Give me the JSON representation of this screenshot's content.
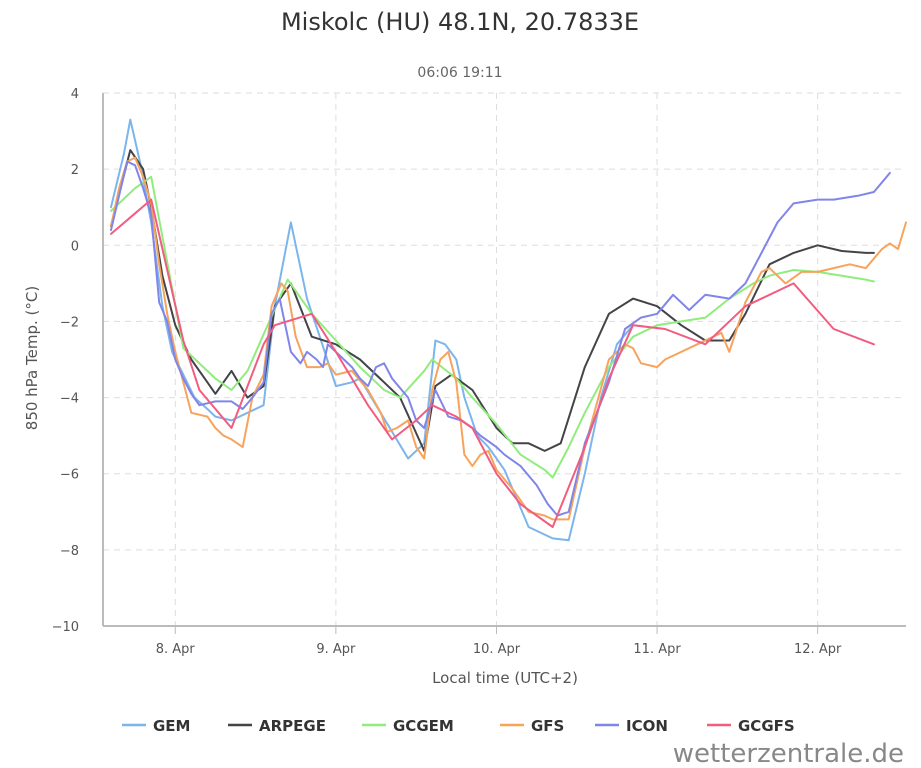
{
  "chart_data": {
    "type": "line",
    "title": "Miskolc (HU) 48.1N, 20.7833E",
    "subtitle": "06:06 19:11",
    "xlabel": "Local time (UTC+2)",
    "ylabel": "850 hPa Temp. (°C)",
    "x_unit": "days (Apr)",
    "xlim": [
      7.55,
      12.55
    ],
    "ylim": [
      -10,
      4
    ],
    "y_ticks": [
      4,
      2,
      0,
      -2,
      -4,
      -6,
      -8,
      -10
    ],
    "x_ticks": [
      {
        "value": 8,
        "label": "8. Apr"
      },
      {
        "value": 9,
        "label": "9. Apr"
      },
      {
        "value": 10,
        "label": "10. Apr"
      },
      {
        "value": 11,
        "label": "11. Apr"
      },
      {
        "value": 12,
        "label": "12. Apr"
      }
    ],
    "grid": true,
    "legend_position": "bottom",
    "credit": "wetterzentrale.de",
    "series": [
      {
        "name": "GEM",
        "color": "#7cb5ec",
        "points": [
          [
            7.6,
            1.0
          ],
          [
            7.68,
            2.4
          ],
          [
            7.72,
            3.3
          ],
          [
            7.78,
            2.2
          ],
          [
            7.85,
            0.6
          ],
          [
            7.92,
            -1.6
          ],
          [
            7.98,
            -2.8
          ],
          [
            8.05,
            -3.4
          ],
          [
            8.12,
            -4.0
          ],
          [
            8.2,
            -4.3
          ],
          [
            8.25,
            -4.5
          ],
          [
            8.35,
            -4.6
          ],
          [
            8.45,
            -4.4
          ],
          [
            8.55,
            -4.2
          ],
          [
            8.62,
            -1.6
          ],
          [
            8.72,
            0.6
          ],
          [
            8.82,
            -1.4
          ],
          [
            8.9,
            -2.4
          ],
          [
            9.0,
            -3.7
          ],
          [
            9.1,
            -3.6
          ],
          [
            9.15,
            -3.5
          ],
          [
            9.25,
            -4.2
          ],
          [
            9.35,
            -4.9
          ],
          [
            9.45,
            -5.6
          ],
          [
            9.55,
            -5.2
          ],
          [
            9.62,
            -2.5
          ],
          [
            9.68,
            -2.6
          ],
          [
            9.75,
            -3.0
          ],
          [
            9.8,
            -4.0
          ],
          [
            9.88,
            -5.0
          ],
          [
            9.95,
            -5.3
          ],
          [
            10.05,
            -5.9
          ],
          [
            10.15,
            -6.9
          ],
          [
            10.2,
            -7.4
          ],
          [
            10.3,
            -7.6
          ],
          [
            10.35,
            -7.7
          ],
          [
            10.45,
            -7.75
          ],
          [
            10.55,
            -6.0
          ],
          [
            10.65,
            -4.0
          ],
          [
            10.75,
            -2.6
          ],
          [
            10.85,
            -2.1
          ]
        ]
      },
      {
        "name": "ARPEGE",
        "color": "#434348",
        "points": [
          [
            7.6,
            0.5
          ],
          [
            7.72,
            2.5
          ],
          [
            7.8,
            2.0
          ],
          [
            7.85,
            1.0
          ],
          [
            7.92,
            -0.8
          ],
          [
            8.0,
            -2.1
          ],
          [
            8.1,
            -3.0
          ],
          [
            8.2,
            -3.6
          ],
          [
            8.25,
            -3.9
          ],
          [
            8.35,
            -3.3
          ],
          [
            8.45,
            -4.0
          ],
          [
            8.55,
            -3.7
          ],
          [
            8.62,
            -1.6
          ],
          [
            8.72,
            -1.0
          ],
          [
            8.85,
            -2.4
          ],
          [
            9.0,
            -2.6
          ],
          [
            9.15,
            -3.0
          ],
          [
            9.3,
            -3.6
          ],
          [
            9.4,
            -4.0
          ],
          [
            9.55,
            -5.4
          ],
          [
            9.62,
            -3.7
          ],
          [
            9.72,
            -3.4
          ],
          [
            9.85,
            -3.8
          ],
          [
            10.0,
            -4.8
          ],
          [
            10.1,
            -5.2
          ],
          [
            10.2,
            -5.2
          ],
          [
            10.3,
            -5.4
          ],
          [
            10.4,
            -5.2
          ],
          [
            10.55,
            -3.2
          ],
          [
            10.7,
            -1.8
          ],
          [
            10.85,
            -1.4
          ],
          [
            11.0,
            -1.6
          ],
          [
            11.15,
            -2.1
          ],
          [
            11.3,
            -2.5
          ],
          [
            11.45,
            -2.5
          ],
          [
            11.55,
            -1.8
          ],
          [
            11.7,
            -0.5
          ],
          [
            11.85,
            -0.2
          ],
          [
            12.0,
            0.0
          ],
          [
            12.15,
            -0.15
          ],
          [
            12.3,
            -0.2
          ],
          [
            12.35,
            -0.2
          ]
        ]
      },
      {
        "name": "GCGEM",
        "color": "#90ed7d",
        "points": [
          [
            7.6,
            0.9
          ],
          [
            7.75,
            1.5
          ],
          [
            7.85,
            1.8
          ],
          [
            8.05,
            -2.7
          ],
          [
            8.25,
            -3.5
          ],
          [
            8.35,
            -3.8
          ],
          [
            8.45,
            -3.3
          ],
          [
            8.7,
            -0.9
          ],
          [
            8.85,
            -1.8
          ],
          [
            9.0,
            -2.5
          ],
          [
            9.15,
            -3.2
          ],
          [
            9.3,
            -3.8
          ],
          [
            9.4,
            -4.0
          ],
          [
            9.55,
            -3.3
          ],
          [
            9.6,
            -3.0
          ],
          [
            9.75,
            -3.5
          ],
          [
            9.85,
            -4.0
          ],
          [
            10.0,
            -4.7
          ],
          [
            10.15,
            -5.5
          ],
          [
            10.3,
            -5.9
          ],
          [
            10.35,
            -6.1
          ],
          [
            10.45,
            -5.3
          ],
          [
            10.55,
            -4.4
          ],
          [
            10.7,
            -3.2
          ],
          [
            10.85,
            -2.4
          ],
          [
            11.0,
            -2.1
          ],
          [
            11.15,
            -2.0
          ],
          [
            11.3,
            -1.9
          ],
          [
            11.45,
            -1.4
          ],
          [
            11.6,
            -1.0
          ],
          [
            11.7,
            -0.8
          ],
          [
            11.85,
            -0.65
          ],
          [
            12.0,
            -0.7
          ],
          [
            12.15,
            -0.8
          ],
          [
            12.3,
            -0.9
          ],
          [
            12.35,
            -0.95
          ]
        ]
      },
      {
        "name": "GFS",
        "color": "#f7a35c",
        "points": [
          [
            7.6,
            0.5
          ],
          [
            7.65,
            1.5
          ],
          [
            7.7,
            2.2
          ],
          [
            7.75,
            2.3
          ],
          [
            7.8,
            1.8
          ],
          [
            7.85,
            1.1
          ],
          [
            7.9,
            -0.5
          ],
          [
            7.95,
            -1.8
          ],
          [
            8.0,
            -2.8
          ],
          [
            8.05,
            -3.6
          ],
          [
            8.1,
            -4.4
          ],
          [
            8.2,
            -4.5
          ],
          [
            8.25,
            -4.8
          ],
          [
            8.3,
            -5.0
          ],
          [
            8.35,
            -5.1
          ],
          [
            8.42,
            -5.3
          ],
          [
            8.48,
            -4.0
          ],
          [
            8.55,
            -3.4
          ],
          [
            8.6,
            -1.6
          ],
          [
            8.66,
            -1.0
          ],
          [
            8.7,
            -1.2
          ],
          [
            8.75,
            -2.4
          ],
          [
            8.82,
            -3.2
          ],
          [
            8.9,
            -3.2
          ],
          [
            8.95,
            -3.1
          ],
          [
            9.0,
            -3.4
          ],
          [
            9.1,
            -3.3
          ],
          [
            9.2,
            -3.8
          ],
          [
            9.28,
            -4.4
          ],
          [
            9.32,
            -4.9
          ],
          [
            9.38,
            -4.8
          ],
          [
            9.45,
            -4.6
          ],
          [
            9.5,
            -5.3
          ],
          [
            9.55,
            -5.6
          ],
          [
            9.6,
            -3.8
          ],
          [
            9.65,
            -3.0
          ],
          [
            9.7,
            -2.8
          ],
          [
            9.75,
            -3.6
          ],
          [
            9.8,
            -5.5
          ],
          [
            9.85,
            -5.8
          ],
          [
            9.9,
            -5.5
          ],
          [
            9.95,
            -5.4
          ],
          [
            10.0,
            -5.9
          ],
          [
            10.1,
            -6.4
          ],
          [
            10.2,
            -7.0
          ],
          [
            10.3,
            -7.1
          ],
          [
            10.35,
            -7.2
          ],
          [
            10.45,
            -7.2
          ],
          [
            10.55,
            -5.3
          ],
          [
            10.7,
            -3.0
          ],
          [
            10.8,
            -2.6
          ],
          [
            10.85,
            -2.7
          ],
          [
            10.9,
            -3.1
          ],
          [
            11.0,
            -3.2
          ],
          [
            11.05,
            -3.0
          ],
          [
            11.15,
            -2.8
          ],
          [
            11.25,
            -2.6
          ],
          [
            11.35,
            -2.4
          ],
          [
            11.4,
            -2.3
          ],
          [
            11.45,
            -2.8
          ],
          [
            11.55,
            -1.5
          ],
          [
            11.65,
            -0.7
          ],
          [
            11.7,
            -0.6
          ],
          [
            11.8,
            -1.0
          ],
          [
            11.9,
            -0.7
          ],
          [
            12.0,
            -0.7
          ],
          [
            12.1,
            -0.6
          ],
          [
            12.2,
            -0.5
          ],
          [
            12.3,
            -0.6
          ],
          [
            12.4,
            -0.1
          ],
          [
            12.45,
            0.05
          ],
          [
            12.5,
            -0.1
          ],
          [
            12.55,
            0.6
          ]
        ]
      },
      {
        "name": "ICON",
        "color": "#8085e9",
        "points": [
          [
            7.6,
            0.4
          ],
          [
            7.7,
            2.2
          ],
          [
            7.75,
            2.1
          ],
          [
            7.8,
            1.5
          ],
          [
            7.85,
            0.8
          ],
          [
            7.9,
            -1.5
          ],
          [
            7.95,
            -2.0
          ],
          [
            8.0,
            -3.0
          ],
          [
            8.05,
            -3.5
          ],
          [
            8.1,
            -3.9
          ],
          [
            8.15,
            -4.2
          ],
          [
            8.25,
            -4.1
          ],
          [
            8.35,
            -4.1
          ],
          [
            8.42,
            -4.3
          ],
          [
            8.48,
            -4.0
          ],
          [
            8.55,
            -3.6
          ],
          [
            8.6,
            -1.8
          ],
          [
            8.65,
            -1.4
          ],
          [
            8.72,
            -2.8
          ],
          [
            8.78,
            -3.1
          ],
          [
            8.82,
            -2.8
          ],
          [
            8.88,
            -3.0
          ],
          [
            8.92,
            -3.2
          ],
          [
            8.95,
            -2.6
          ],
          [
            9.0,
            -2.8
          ],
          [
            9.1,
            -3.2
          ],
          [
            9.15,
            -3.5
          ],
          [
            9.2,
            -3.7
          ],
          [
            9.25,
            -3.2
          ],
          [
            9.3,
            -3.1
          ],
          [
            9.35,
            -3.5
          ],
          [
            9.45,
            -4.0
          ],
          [
            9.5,
            -4.6
          ],
          [
            9.55,
            -4.8
          ],
          [
            9.62,
            -3.8
          ],
          [
            9.7,
            -4.5
          ],
          [
            9.78,
            -4.6
          ],
          [
            9.85,
            -4.8
          ],
          [
            9.9,
            -5.0
          ],
          [
            10.0,
            -5.3
          ],
          [
            10.05,
            -5.5
          ],
          [
            10.15,
            -5.8
          ],
          [
            10.25,
            -6.3
          ],
          [
            10.32,
            -6.8
          ],
          [
            10.38,
            -7.1
          ],
          [
            10.45,
            -7.0
          ],
          [
            10.55,
            -5.2
          ],
          [
            10.7,
            -3.6
          ],
          [
            10.8,
            -2.2
          ],
          [
            10.9,
            -1.9
          ],
          [
            11.0,
            -1.8
          ],
          [
            11.1,
            -1.3
          ],
          [
            11.2,
            -1.7
          ],
          [
            11.3,
            -1.3
          ],
          [
            11.45,
            -1.4
          ],
          [
            11.55,
            -1.0
          ],
          [
            11.65,
            -0.2
          ],
          [
            11.75,
            0.6
          ],
          [
            11.85,
            1.1
          ],
          [
            12.0,
            1.2
          ],
          [
            12.1,
            1.2
          ],
          [
            12.25,
            1.3
          ],
          [
            12.35,
            1.4
          ],
          [
            12.45,
            1.9
          ]
        ]
      },
      {
        "name": "GCGFS",
        "color": "#f15c80",
        "points": [
          [
            7.6,
            0.3
          ],
          [
            7.85,
            1.2
          ],
          [
            8.05,
            -2.5
          ],
          [
            8.15,
            -3.8
          ],
          [
            8.35,
            -4.8
          ],
          [
            8.55,
            -2.6
          ],
          [
            8.62,
            -2.1
          ],
          [
            8.85,
            -1.8
          ],
          [
            9.0,
            -2.8
          ],
          [
            9.2,
            -4.2
          ],
          [
            9.35,
            -5.1
          ],
          [
            9.5,
            -4.6
          ],
          [
            9.6,
            -4.2
          ],
          [
            9.75,
            -4.5
          ],
          [
            9.85,
            -4.8
          ],
          [
            10.0,
            -6.0
          ],
          [
            10.15,
            -6.8
          ],
          [
            10.35,
            -7.4
          ],
          [
            10.55,
            -5.3
          ],
          [
            10.7,
            -3.5
          ],
          [
            10.85,
            -2.1
          ],
          [
            11.05,
            -2.2
          ],
          [
            11.3,
            -2.6
          ],
          [
            11.55,
            -1.6
          ],
          [
            11.85,
            -1.0
          ],
          [
            12.1,
            -2.2
          ],
          [
            12.35,
            -2.6
          ]
        ]
      }
    ]
  }
}
